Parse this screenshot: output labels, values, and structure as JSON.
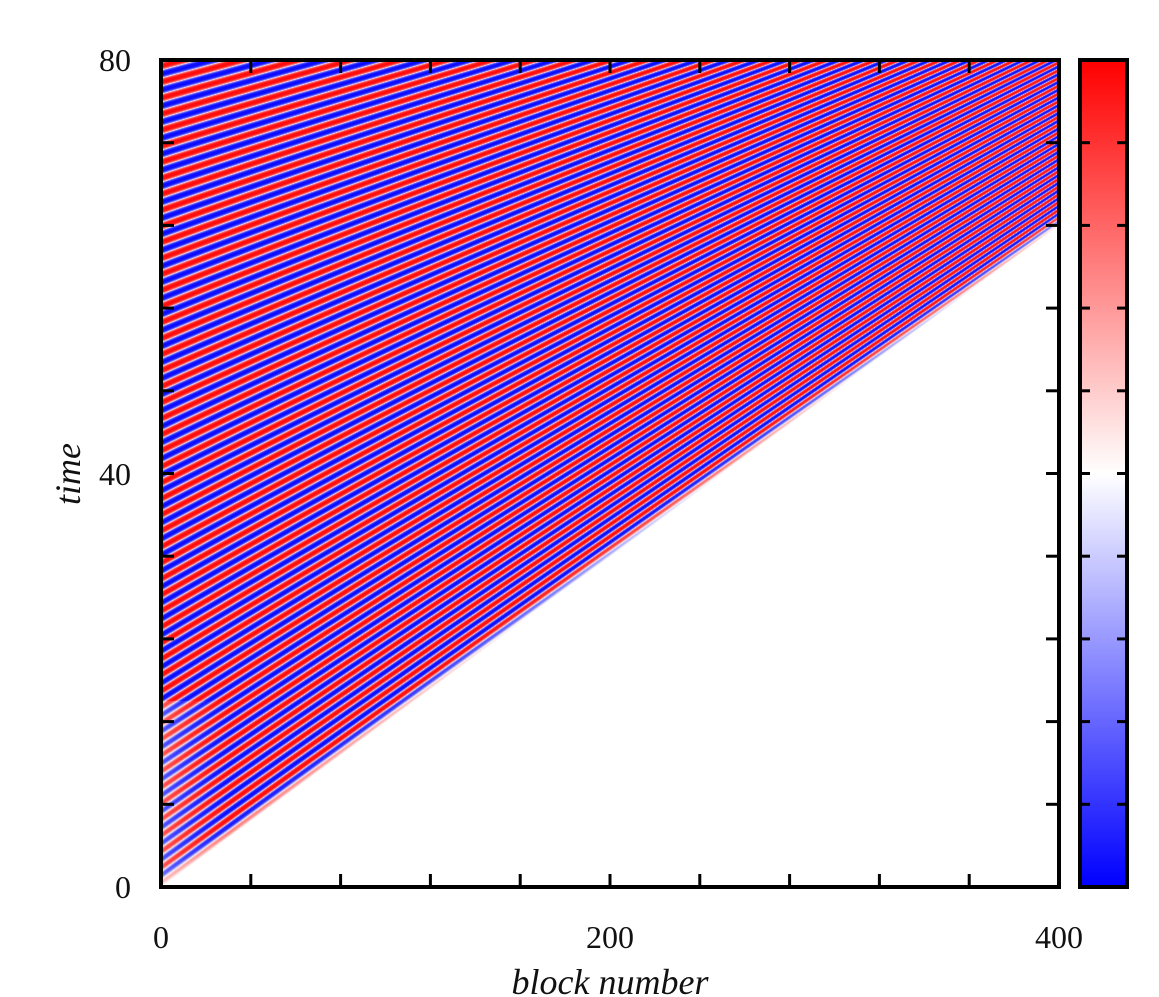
{
  "chart_data": {
    "type": "heatmap",
    "xlabel": "block number",
    "ylabel": "time",
    "xlim": [
      0,
      400
    ],
    "ylim": [
      0,
      80
    ],
    "x_ticks": [
      "0",
      "200",
      "400"
    ],
    "y_ticks": [
      "0",
      "40",
      "80"
    ],
    "x_minor_step": 40,
    "y_minor_step": 8,
    "grid": false,
    "colormap": [
      "#0000ff",
      "#ffffff",
      "#ff0000"
    ],
    "colorbar": {
      "position": "right",
      "tick_count": 9
    },
    "pattern": {
      "front_speed_blocks_per_time": 6.25,
      "front_reaches_block_400_at_time": 64,
      "band_period_time_at_block_0": 1.55,
      "band_period_time_at_block_400": 0.75
    }
  }
}
